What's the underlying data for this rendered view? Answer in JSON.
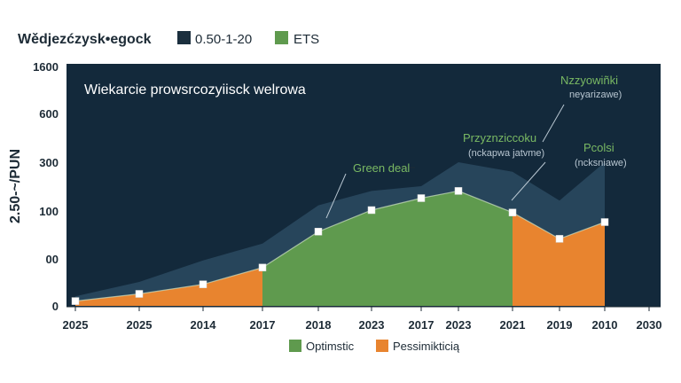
{
  "chart_data": {
    "type": "area",
    "title": "Wědjezćzysk•egock",
    "subtitle": "Wiekarcie prowsrcozyiisck welrowa",
    "ylabel": "2.50-~/PUN",
    "y_tick_labels": [
      "0",
      "00",
      "100",
      "300",
      "600",
      "1600"
    ],
    "x_tick_labels": [
      "2025",
      "2025",
      "2014",
      "2017",
      "2018",
      "2023",
      "2017",
      "2023",
      "2021",
      "2019",
      "2010",
      "2030"
    ],
    "top_legend": [
      {
        "label": "0.50-1-20",
        "color": "#1b2f3e"
      },
      {
        "label": "ETS",
        "color": "#5f9a4e"
      }
    ],
    "bottom_legend": [
      {
        "label": "Optimstic",
        "color": "#5f9a4e"
      },
      {
        "label": "Pessimikticią",
        "color": "#e8842f"
      }
    ],
    "series": [
      {
        "name": "Optimstic",
        "color": "#5f9a4e",
        "x_index": [
          3,
          4,
          5,
          6,
          7,
          8
        ],
        "values": [
          80,
          155,
          200,
          225,
          240,
          195
        ]
      },
      {
        "name": "Pessimikticią",
        "color": "#e8842f",
        "x_index": [
          0,
          1,
          2,
          3,
          8,
          9,
          10
        ],
        "values": [
          10,
          25,
          45,
          80,
          195,
          140,
          175
        ]
      }
    ],
    "upper_band": {
      "color": "#2c4a62",
      "x_index": [
        0,
        1,
        2,
        3,
        4,
        5,
        6,
        7,
        8,
        9,
        10
      ],
      "values": [
        20,
        50,
        95,
        130,
        210,
        240,
        250,
        300,
        280,
        220,
        300
      ]
    },
    "markers": {
      "x_index": [
        0,
        1,
        2,
        3,
        4,
        5,
        6,
        7,
        8,
        9,
        10
      ],
      "values": [
        10,
        25,
        45,
        80,
        155,
        200,
        225,
        240,
        195,
        140,
        175
      ]
    },
    "annotations": [
      {
        "text": "Green deal",
        "style": "green"
      },
      {
        "text": "Przyznziccoku",
        "style": "green"
      },
      {
        "text": "(nckapwa jatvme)",
        "style": "light"
      },
      {
        "text": "Pcolsi",
        "style": "green"
      },
      {
        "text": "(ncksniawe)",
        "style": "light"
      },
      {
        "text": "Nzzyowiñki",
        "style": "green"
      },
      {
        "text": "neyarizawe)",
        "style": "light"
      }
    ],
    "colors": {
      "background_panel": "#13293b",
      "upper_band": "#2c4a62",
      "optimistic": "#5f9a4e",
      "pessimistic": "#e8842f"
    }
  }
}
